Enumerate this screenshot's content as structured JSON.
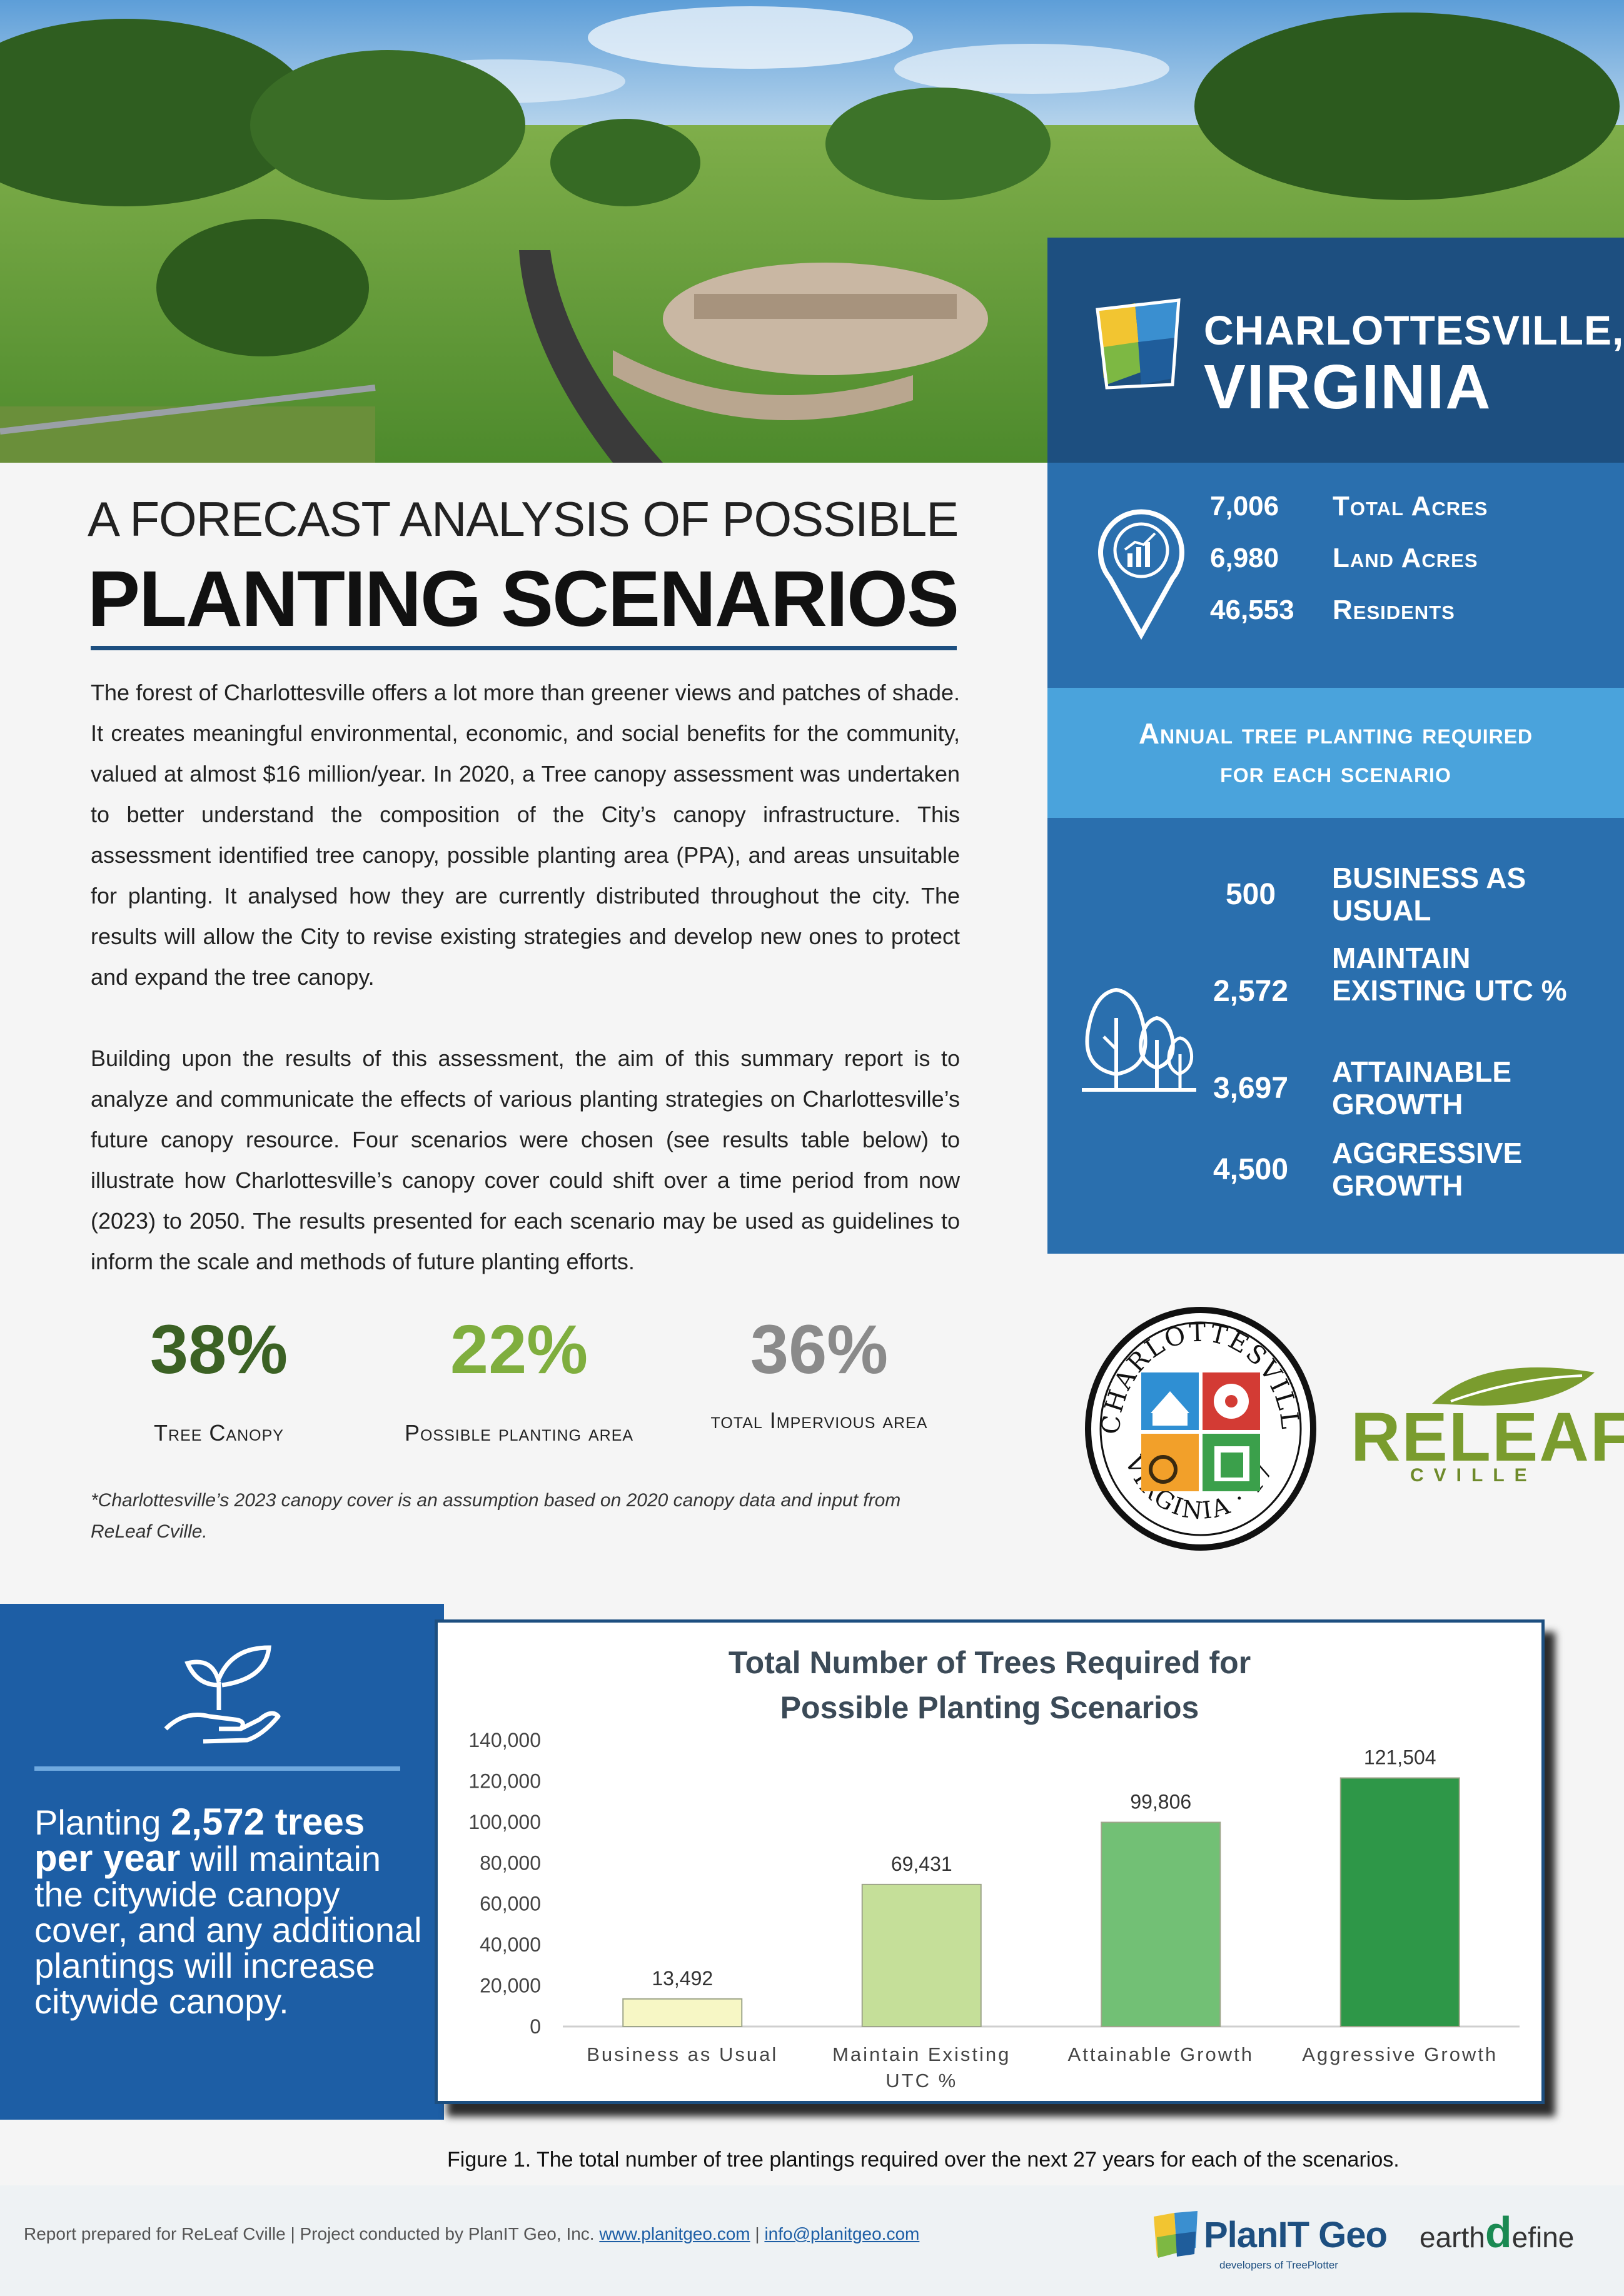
{
  "header": {
    "city_line1": "CHARLOTTESVILLE,",
    "city_line2": "VIRGINIA"
  },
  "stats": [
    {
      "value": "7,006",
      "label": "Total Acres"
    },
    {
      "value": "6,980",
      "label": "Land Acres"
    },
    {
      "value": "46,553",
      "label": "Residents"
    }
  ],
  "annual": {
    "title_line1": "Annual tree planting required",
    "title_line2": "for each scenario",
    "scenarios": [
      {
        "value": "500",
        "label": "BUSINESS AS USUAL"
      },
      {
        "value": "2,572",
        "label": "MAINTAIN EXISTING UTC %"
      },
      {
        "value": "3,697",
        "label": "ATTAINABLE GROWTH"
      },
      {
        "value": "4,500",
        "label": "AGGRESSIVE GROWTH"
      }
    ]
  },
  "main": {
    "title_line1": "A FORECAST ANALYSIS OF POSSIBLE",
    "title_line2": "PLANTING SCENARIOS",
    "para1": "The forest of Charlottesville offers a lot more than greener views and patches of shade. It creates meaningful environmental, economic, and social benefits for the community, valued at almost $16 million/year. In 2020, a Tree canopy assessment was undertaken to better understand the composition of the City’s canopy infrastructure. This assessment identified tree canopy, possible planting area (PPA), and areas unsuitable for planting. It analysed how they are currently distributed throughout the city. The results will allow the City to revise existing strategies and develop new ones to protect and expand the tree canopy.",
    "para2": "Building upon the results of this assessment, the aim of this summary report is to analyze and communicate the effects of various planting strategies on Charlottesville’s future canopy resource. Four scenarios were chosen (see results table below) to illustrate how Charlottesville’s canopy cover could shift over a time period from now (2023) to 2050. The results presented for each scenario may be used as guidelines to inform the scale and methods of future planting efforts.",
    "metrics": [
      {
        "value": "38%",
        "label": "Tree Canopy",
        "color": "#3b6124"
      },
      {
        "value": "22%",
        "label": "Possible planting area",
        "color": "#7fae3e"
      },
      {
        "value": "36%",
        "label": "total Impervious area",
        "color": "#8a8a8a"
      }
    ],
    "note": "*Charlottesville’s 2023 canopy cover is an assumption based on 2020 canopy data and input from ReLeaf Cville."
  },
  "logos": {
    "seal_top": "CHARLOTTESVILLE",
    "seal_bottom": "VIRGINIA · 1762",
    "releaf_word": "RELEAF",
    "releaf_sub": "CVILLE"
  },
  "callout": {
    "pre": "Planting ",
    "bold": "2,572 trees per year",
    "post": " will maintain the citywide canopy cover, and any additional plantings will increase citywide canopy."
  },
  "chart_data": {
    "type": "bar",
    "title": "Total Number of Trees Required for Possible Planting Scenarios",
    "categories": [
      "Business as Usual",
      "Maintain Existing UTC %",
      "Attainable Growth",
      "Aggressive Growth"
    ],
    "values": [
      13492,
      69431,
      99806,
      121504
    ],
    "value_labels": [
      "13,492",
      "69,431",
      "99,806",
      "121,504"
    ],
    "ylim": [
      0,
      140000
    ],
    "yticks": [
      "0",
      "20,000",
      "40,000",
      "60,000",
      "80,000",
      "100,000",
      "120,000",
      "140,000"
    ],
    "colors": [
      "#f7f7c5",
      "#c5df99",
      "#72c075",
      "#2e9748"
    ],
    "grid": false
  },
  "figure_caption": "Figure 1. The total number of tree plantings required over the next 27 years for each of the scenarios.",
  "footer": {
    "text_pre": "Report prepared for ReLeaf Cville | Project conducted by PlanIT Geo, Inc. ",
    "link1": "www.planitgeo.com",
    "sep": " | ",
    "link2": "info@planitgeo.com",
    "planit_name": "PlanIT Geo",
    "planit_tag": "developers of TreePlotter",
    "earth": "earth",
    "define_d": "d",
    "define": "efine"
  }
}
